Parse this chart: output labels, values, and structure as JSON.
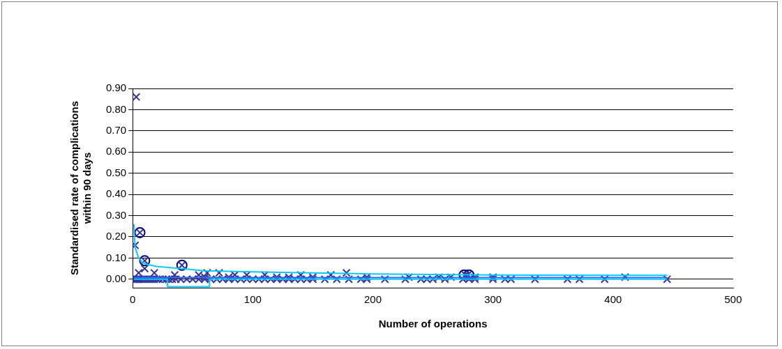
{
  "chart_data": {
    "type": "scatter",
    "xlabel": "Number of operations",
    "ylabel": "Standardised rate of complications within 90 days",
    "xlim": [
      0,
      500
    ],
    "xticks": [
      0,
      100,
      200,
      300,
      400,
      500
    ],
    "ylim": [
      -0.04,
      0.9
    ],
    "yticks": [
      {
        "value": 0,
        "label": "0.00"
      },
      {
        "value": 0.1,
        "label": "0.10"
      },
      {
        "value": 0.2,
        "label": "0.20"
      },
      {
        "value": 0.3,
        "label": "0.30"
      },
      {
        "value": 0.4,
        "label": "0.40"
      },
      {
        "value": 0.5,
        "label": "0.50"
      },
      {
        "value": 0.6,
        "label": "0.60"
      },
      {
        "value": 0.7,
        "label": "0.70"
      },
      {
        "value": 0.8,
        "label": "0.80"
      },
      {
        "value": 0.9,
        "label": "0.90"
      }
    ],
    "grid": "y",
    "legend": false,
    "series": [
      {
        "type": "line",
        "marker": "none",
        "color": "#00ccff",
        "x": [
          1,
          2,
          5,
          8,
          12,
          20,
          30,
          40,
          60,
          100,
          150,
          200,
          300,
          445
        ],
        "values": [
          0.26,
          0.15,
          0.1,
          0.08,
          0.07,
          0.06,
          0.055,
          0.05,
          0.04,
          0.035,
          0.03,
          0.025,
          0.02,
          0.018
        ]
      },
      {
        "type": "line",
        "marker": "none",
        "color": "#3366ff",
        "x": [
          1,
          445
        ],
        "values": [
          0.008,
          0.008
        ]
      },
      {
        "type": "line",
        "marker": "none",
        "color": "#00ccff",
        "x": [
          1,
          29,
          29,
          64,
          64,
          445
        ],
        "values": [
          0,
          0,
          -0.035,
          -0.035,
          0,
          0
        ]
      },
      {
        "marker": "cross",
        "color": "#333399",
        "x": [
          1,
          2,
          3,
          4,
          5,
          6,
          8,
          10,
          12,
          14,
          16,
          18,
          20,
          22,
          25,
          28,
          30,
          33,
          36,
          40,
          45,
          50,
          55,
          60,
          65,
          70,
          75,
          80,
          85,
          90,
          95,
          100,
          105,
          110,
          115,
          120,
          125,
          130,
          135,
          140,
          145,
          150,
          160,
          170,
          180,
          190,
          195,
          210,
          227,
          240,
          245,
          250,
          260,
          275,
          280,
          285,
          300,
          310,
          315,
          335,
          362,
          372,
          393,
          445,
          2,
          3,
          6,
          10,
          10,
          41,
          5,
          18,
          35,
          55,
          62,
          72,
          85,
          95,
          110,
          140,
          150,
          165,
          178,
          195,
          255,
          265,
          277,
          279,
          285,
          300,
          410,
          60,
          80,
          120,
          130,
          230
        ],
        "values": [
          0,
          0,
          0,
          0,
          0,
          0,
          0,
          0,
          0,
          0,
          0,
          0,
          0,
          0,
          0,
          0,
          0,
          0,
          0,
          0,
          0,
          0,
          0,
          0,
          0,
          0,
          0,
          0,
          0,
          0,
          0,
          0,
          0,
          0,
          0,
          0,
          0,
          0,
          0,
          0,
          0,
          0,
          0,
          0,
          0,
          0,
          0,
          0,
          0,
          0,
          0,
          0,
          0,
          0,
          0,
          0,
          0,
          0,
          0,
          0,
          0,
          0,
          0,
          0,
          0.16,
          0.86,
          0.22,
          0.087,
          0.05,
          0.066,
          0.03,
          0.03,
          0.02,
          0.02,
          0.03,
          0.03,
          0.02,
          0.02,
          0.02,
          0.02,
          0.01,
          0.02,
          0.03,
          0.01,
          0.01,
          0.01,
          0.02,
          0.02,
          0.01,
          0.01,
          0.01,
          0.01,
          0.01,
          0.01,
          0.01,
          0.01
        ]
      },
      {
        "marker": "circle",
        "color": "#000080",
        "x": [
          6,
          10,
          41,
          276,
          280
        ],
        "values": [
          0.22,
          0.087,
          0.066,
          0.02,
          0.02
        ]
      }
    ]
  }
}
